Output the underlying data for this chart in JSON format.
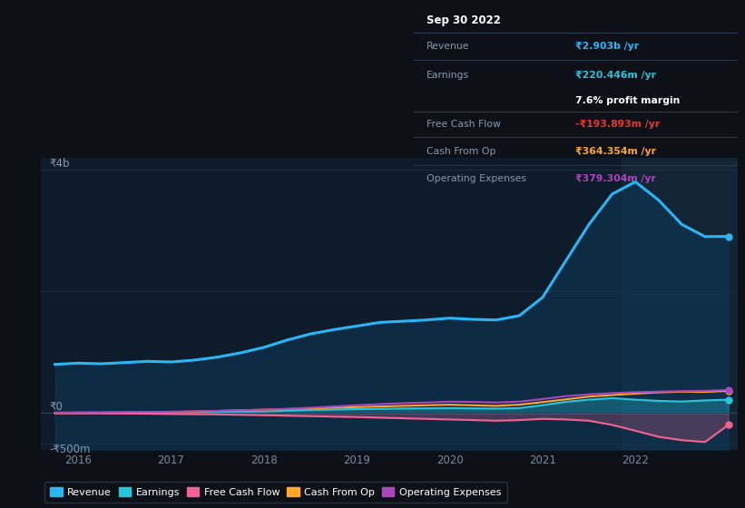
{
  "bg_color": "#0d1117",
  "plot_bg_color": "#0d1b2a",
  "years": [
    2015.75,
    2016.0,
    2016.25,
    2016.5,
    2016.75,
    2017.0,
    2017.25,
    2017.5,
    2017.75,
    2018.0,
    2018.25,
    2018.5,
    2018.75,
    2019.0,
    2019.25,
    2019.5,
    2019.75,
    2020.0,
    2020.25,
    2020.5,
    2020.75,
    2021.0,
    2021.25,
    2021.5,
    2021.75,
    2022.0,
    2022.25,
    2022.5,
    2022.75,
    2023.0
  ],
  "revenue": [
    800,
    820,
    810,
    830,
    850,
    840,
    870,
    920,
    990,
    1080,
    1200,
    1300,
    1370,
    1430,
    1490,
    1510,
    1530,
    1560,
    1540,
    1530,
    1600,
    1900,
    2500,
    3100,
    3600,
    3800,
    3500,
    3100,
    2900,
    2903
  ],
  "earnings": [
    5,
    7,
    6,
    8,
    10,
    11,
    14,
    18,
    22,
    28,
    38,
    50,
    58,
    65,
    70,
    75,
    78,
    82,
    78,
    73,
    82,
    130,
    185,
    220,
    245,
    220,
    200,
    190,
    208,
    220
  ],
  "free_cash_flow": [
    -3,
    -4,
    -5,
    -8,
    -10,
    -15,
    -18,
    -22,
    -28,
    -35,
    -42,
    -50,
    -58,
    -65,
    -75,
    -85,
    -95,
    -105,
    -115,
    -125,
    -115,
    -95,
    -105,
    -125,
    -195,
    -290,
    -390,
    -445,
    -475,
    -194
  ],
  "cash_from_op": [
    3,
    5,
    6,
    9,
    12,
    18,
    25,
    35,
    45,
    55,
    65,
    78,
    88,
    98,
    108,
    118,
    128,
    138,
    128,
    118,
    138,
    180,
    225,
    270,
    295,
    320,
    340,
    352,
    348,
    364
  ],
  "operating_expenses": [
    8,
    10,
    12,
    15,
    18,
    22,
    28,
    36,
    46,
    56,
    70,
    88,
    108,
    128,
    148,
    163,
    173,
    188,
    183,
    173,
    188,
    230,
    278,
    308,
    328,
    342,
    352,
    360,
    365,
    379
  ],
  "revenue_color": "#29b6f6",
  "earnings_color": "#26c6da",
  "free_cash_flow_color": "#f06292",
  "cash_from_op_color": "#ffa726",
  "operating_expenses_color": "#ab47bc",
  "ylabel_4b": "₹4b",
  "ylabel_0": "₹0",
  "ylabel_neg500m": "-₹500m",
  "xticklabels": [
    "2016",
    "2017",
    "2018",
    "2019",
    "2020",
    "2021",
    "2022"
  ],
  "tooltip_title": "Sep 30 2022",
  "tooltip_revenue_label": "Revenue",
  "tooltip_revenue_val": "₹2.903b /yr",
  "tooltip_earnings_label": "Earnings",
  "tooltip_earnings_val": "₹220.446m /yr",
  "tooltip_profit_margin": "7.6% profit margin",
  "tooltip_fcf_label": "Free Cash Flow",
  "tooltip_fcf_val": "-₹193.893m /yr",
  "tooltip_cashop_label": "Cash From Op",
  "tooltip_cashop_val": "₹364.354m /yr",
  "tooltip_opex_label": "Operating Expenses",
  "tooltip_opex_val": "₹379.304m /yr",
  "legend_labels": [
    "Revenue",
    "Earnings",
    "Free Cash Flow",
    "Cash From Op",
    "Operating Expenses"
  ],
  "highlight_x_start": 2021.85,
  "highlight_x_end": 2023.1,
  "ylim_min": -0.6,
  "ylim_max": 4.2,
  "xlim_min": 2015.6,
  "xlim_max": 2023.1
}
